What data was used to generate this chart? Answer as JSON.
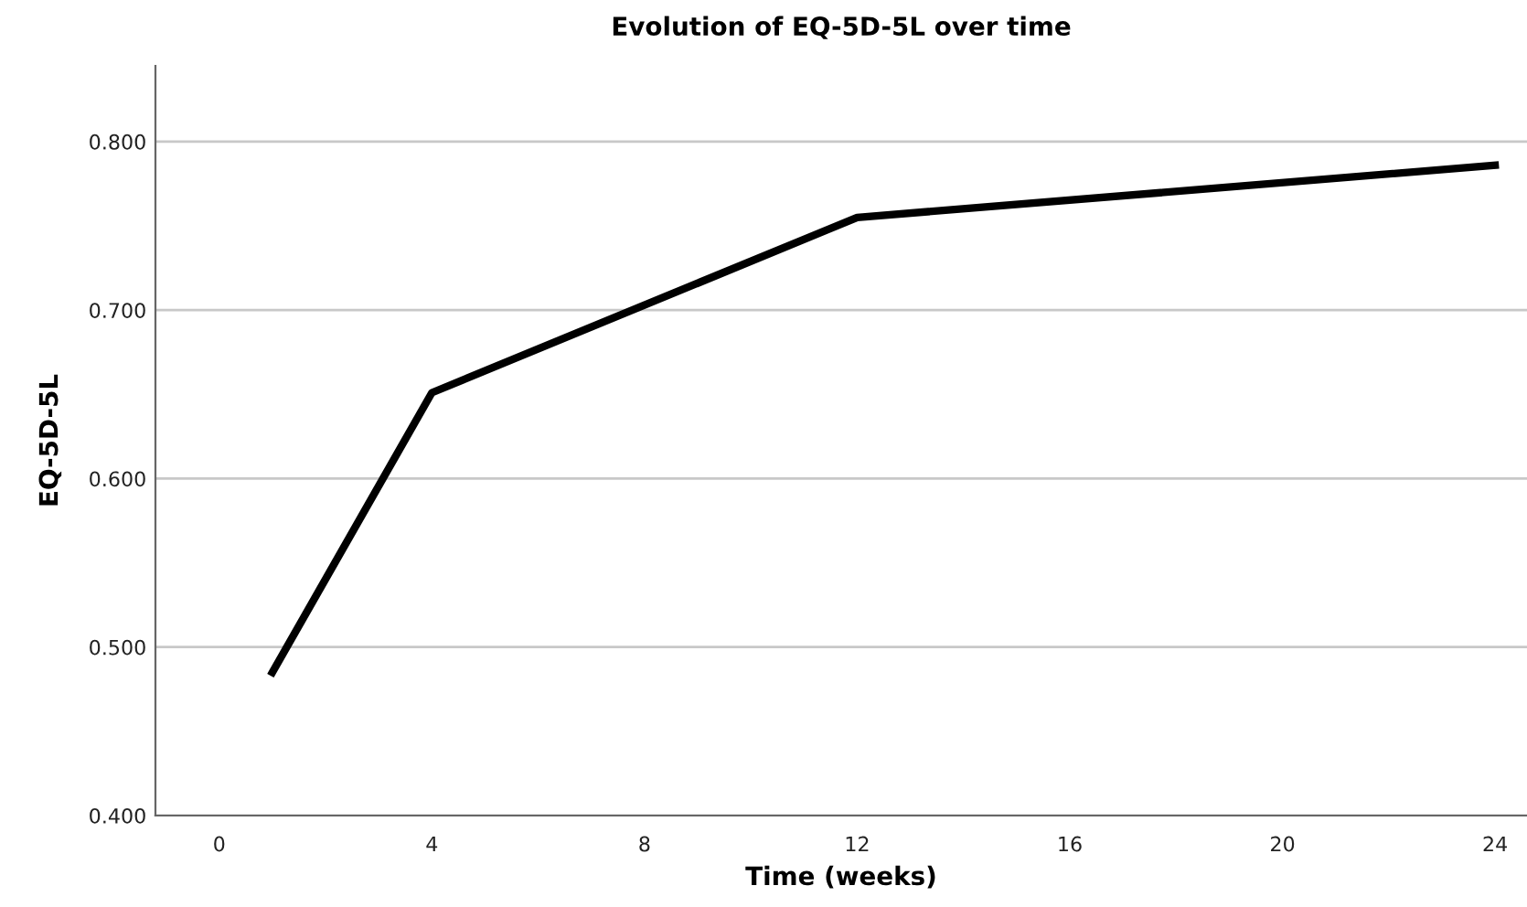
{
  "chart_data": {
    "type": "line",
    "title": "Evolution of EQ-5D-5L over time",
    "xlabel": "Time (weeks)",
    "ylabel": "EQ-5D-5L",
    "x": [
      1,
      4,
      12,
      24
    ],
    "series": [
      {
        "color": "#000000",
        "values": [
          0.485,
          0.651,
          0.755,
          0.786
        ]
      }
    ],
    "xlim": [
      -1.2,
      24.6
    ],
    "xticks": [
      0,
      4,
      8,
      12,
      16,
      20,
      24
    ],
    "ylim": [
      0.4,
      0.845
    ],
    "yticks": [
      {
        "value": 0.4,
        "label": "0.400"
      },
      {
        "value": 0.5,
        "label": "0.500"
      },
      {
        "value": 0.6,
        "label": "0.600"
      },
      {
        "value": 0.7,
        "label": "0.700"
      },
      {
        "value": 0.8,
        "label": "0.800"
      }
    ],
    "grid": "y",
    "marker": "none",
    "line_style": "solid"
  }
}
